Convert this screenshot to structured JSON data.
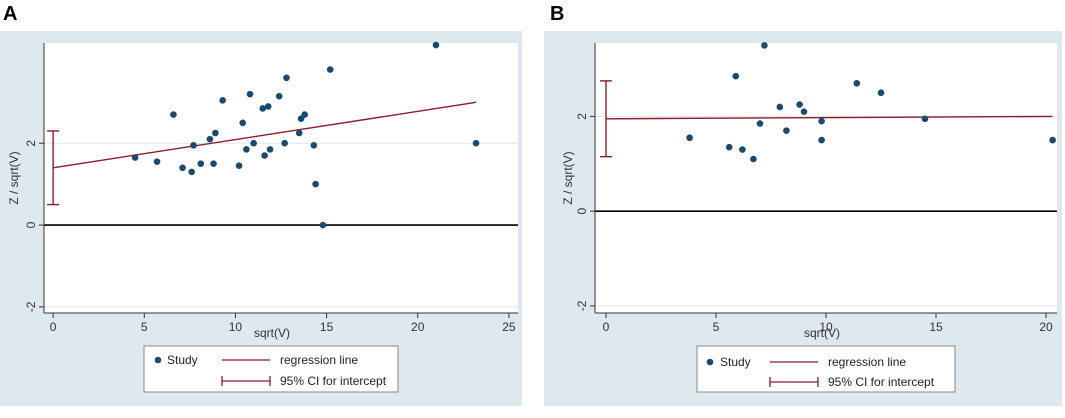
{
  "colors": {
    "panel_background": "#dde8ef",
    "plot_background": "#ffffff",
    "study_marker": "#1a4a6e",
    "regression_line": "#8b1c2c",
    "ci_bar": "#8b1c2c",
    "zero_line": "#000000",
    "gridline": "#dbe6ec"
  },
  "chart_data": [
    {
      "panel": "A",
      "type": "scatter",
      "xlabel": "sqrt(V)",
      "ylabel": "Z / sqrt(V)",
      "xlim": [
        -0.5,
        25.5
      ],
      "ylim": [
        -2.15,
        4.45
      ],
      "xticks": [
        0,
        5,
        10,
        15,
        20,
        25
      ],
      "yticks": [
        -2,
        0,
        2
      ],
      "studies": [
        {
          "x": 4.5,
          "y": 1.65
        },
        {
          "x": 5.7,
          "y": 1.55
        },
        {
          "x": 6.6,
          "y": 2.7
        },
        {
          "x": 7.1,
          "y": 1.4
        },
        {
          "x": 7.6,
          "y": 1.3
        },
        {
          "x": 7.7,
          "y": 1.95
        },
        {
          "x": 8.1,
          "y": 1.5
        },
        {
          "x": 8.6,
          "y": 2.1
        },
        {
          "x": 8.8,
          "y": 1.5
        },
        {
          "x": 8.9,
          "y": 2.25
        },
        {
          "x": 9.3,
          "y": 3.05
        },
        {
          "x": 10.2,
          "y": 1.45
        },
        {
          "x": 10.4,
          "y": 2.5
        },
        {
          "x": 10.6,
          "y": 1.85
        },
        {
          "x": 10.8,
          "y": 3.2
        },
        {
          "x": 11.0,
          "y": 2.0
        },
        {
          "x": 11.5,
          "y": 2.85
        },
        {
          "x": 11.6,
          "y": 1.7
        },
        {
          "x": 11.8,
          "y": 2.9
        },
        {
          "x": 11.9,
          "y": 1.85
        },
        {
          "x": 12.4,
          "y": 3.15
        },
        {
          "x": 12.7,
          "y": 2.0
        },
        {
          "x": 12.8,
          "y": 3.6
        },
        {
          "x": 13.5,
          "y": 2.25
        },
        {
          "x": 13.6,
          "y": 2.6
        },
        {
          "x": 13.8,
          "y": 2.7
        },
        {
          "x": 14.3,
          "y": 1.95
        },
        {
          "x": 14.4,
          "y": 1.0
        },
        {
          "x": 14.8,
          "y": 0.0
        },
        {
          "x": 15.2,
          "y": 3.8
        },
        {
          "x": 21.0,
          "y": 4.4
        },
        {
          "x": 23.2,
          "y": 2.0
        }
      ],
      "regression_line": {
        "x": [
          0,
          23.2
        ],
        "y": [
          1.4,
          3.0
        ]
      },
      "ci_intercept": [
        0.5,
        2.3
      ],
      "legend": {
        "study": "Study",
        "regression": "regression line",
        "ci": "95% CI for intercept"
      }
    },
    {
      "panel": "B",
      "type": "scatter",
      "xlabel": "sqrt(V)",
      "ylabel": "Z / sqrt(V)",
      "xlim": [
        -0.5,
        20.5
      ],
      "ylim": [
        -2.15,
        3.55
      ],
      "xticks": [
        0,
        5,
        10,
        15,
        20
      ],
      "yticks": [
        -2,
        0,
        2
      ],
      "studies": [
        {
          "x": 3.8,
          "y": 1.55
        },
        {
          "x": 5.6,
          "y": 1.35
        },
        {
          "x": 5.9,
          "y": 2.85
        },
        {
          "x": 6.2,
          "y": 1.3
        },
        {
          "x": 6.7,
          "y": 1.1
        },
        {
          "x": 7.0,
          "y": 1.85
        },
        {
          "x": 7.2,
          "y": 3.5
        },
        {
          "x": 7.9,
          "y": 2.2
        },
        {
          "x": 8.2,
          "y": 1.7
        },
        {
          "x": 8.8,
          "y": 2.25
        },
        {
          "x": 9.0,
          "y": 2.1
        },
        {
          "x": 9.8,
          "y": 1.9
        },
        {
          "x": 9.8,
          "y": 1.5
        },
        {
          "x": 11.4,
          "y": 2.7
        },
        {
          "x": 12.5,
          "y": 2.5
        },
        {
          "x": 14.5,
          "y": 1.95
        },
        {
          "x": 20.3,
          "y": 1.5
        }
      ],
      "regression_line": {
        "x": [
          0,
          20.3
        ],
        "y": [
          1.95,
          2.0
        ]
      },
      "ci_intercept": [
        1.15,
        2.75
      ],
      "legend": {
        "study": "Study",
        "regression": "regression line",
        "ci": "95% CI for intercept"
      }
    }
  ]
}
